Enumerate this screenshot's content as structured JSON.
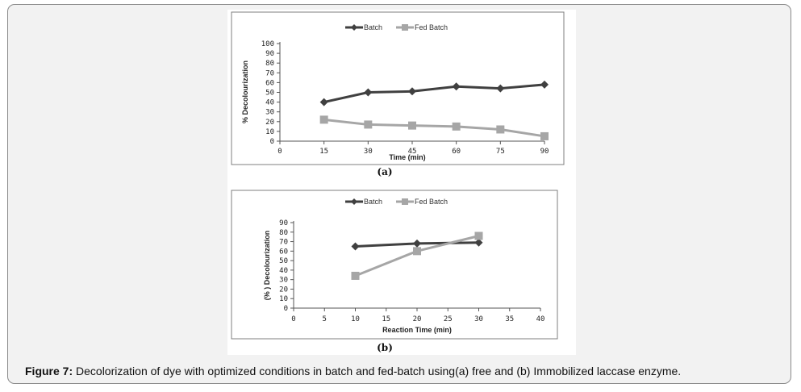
{
  "caption": {
    "label": "Figure 7:",
    "text": " Decolorization of dye with optimized conditions in batch and fed-batch using(a) free and (b) Immobilized laccase enzyme."
  },
  "chart_data": [
    {
      "type": "line",
      "panel_label": "(a)",
      "title": "",
      "xlabel": "Time  (min)",
      "ylabel": "% Decolourization",
      "x_ticks": [
        "0",
        "15",
        "30",
        "45",
        "60",
        "75",
        "90"
      ],
      "y_ticks": [
        "0",
        "10",
        "20",
        "30",
        "40",
        "50",
        "60",
        "70",
        "80",
        "90",
        "100"
      ],
      "xlim": [
        0,
        90
      ],
      "ylim": [
        0,
        100
      ],
      "legend": [
        "Batch",
        "Fed Batch"
      ],
      "legend_position": "top",
      "x": [
        15,
        30,
        45,
        60,
        75,
        90
      ],
      "series": [
        {
          "name": "Batch",
          "values": [
            40,
            50,
            51,
            56,
            54,
            58
          ],
          "color": "#404040",
          "marker": "diamond"
        },
        {
          "name": "Fed Batch",
          "values": [
            22,
            17,
            16,
            15,
            12,
            5
          ],
          "color": "#a6a6a6",
          "marker": "square"
        }
      ]
    },
    {
      "type": "line",
      "panel_label": "(b)",
      "title": "",
      "xlabel": "Reaction Time (min)",
      "ylabel": "(% ) Decolourization",
      "x_ticks": [
        "0",
        "5",
        "10",
        "15",
        "20",
        "25",
        "30",
        "35",
        "40"
      ],
      "y_ticks": [
        "0",
        "10",
        "20",
        "30",
        "40",
        "50",
        "60",
        "70",
        "80",
        "90"
      ],
      "xlim": [
        0,
        40
      ],
      "ylim": [
        0,
        90
      ],
      "legend": [
        "Batch",
        "Fed Batch"
      ],
      "legend_position": "top",
      "x": [
        10,
        20,
        30
      ],
      "series": [
        {
          "name": "Batch",
          "values": [
            65,
            68,
            69
          ],
          "color": "#404040",
          "marker": "diamond"
        },
        {
          "name": "Fed Batch",
          "values": [
            34,
            60,
            76
          ],
          "color": "#a6a6a6",
          "marker": "square"
        }
      ]
    }
  ]
}
